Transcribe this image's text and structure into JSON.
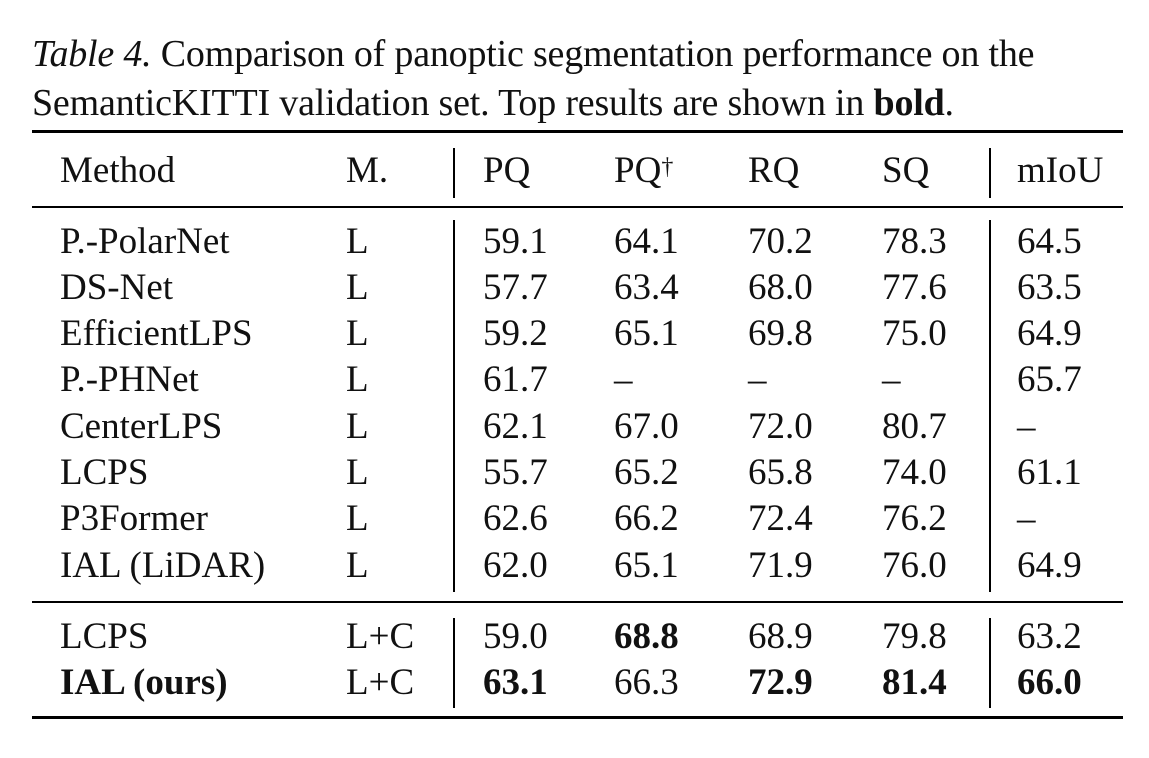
{
  "caption": {
    "label": "Table 4.",
    "line1_rest": " Comparison of panoptic segmentation performance on the",
    "line2_before": "SemanticKITTI validation set. Top results are shown in ",
    "line2_bold": "bold",
    "line2_after": "."
  },
  "table": {
    "headers": {
      "method": "Method",
      "modality": "M.",
      "pq": "PQ",
      "pq_dagger": "PQ",
      "pq_dagger_mark": "†",
      "rq": "RQ",
      "sq": "SQ",
      "miou": "mIoU"
    },
    "rows": [
      {
        "method": "P.-PolarNet",
        "m": "L",
        "pq": "59.1",
        "pqd": "64.1",
        "rq": "70.2",
        "sq": "78.3",
        "miou": "64.5"
      },
      {
        "method": "DS-Net",
        "m": "L",
        "pq": "57.7",
        "pqd": "63.4",
        "rq": "68.0",
        "sq": "77.6",
        "miou": "63.5"
      },
      {
        "method": "EfficientLPS",
        "m": "L",
        "pq": "59.2",
        "pqd": "65.1",
        "rq": "69.8",
        "sq": "75.0",
        "miou": "64.9"
      },
      {
        "method": "P.-PHNet",
        "m": "L",
        "pq": "61.7",
        "pqd": "–",
        "rq": "–",
        "sq": "–",
        "miou": "65.7"
      },
      {
        "method": "CenterLPS",
        "m": "L",
        "pq": "62.1",
        "pqd": "67.0",
        "rq": "72.0",
        "sq": "80.7",
        "miou": "–"
      },
      {
        "method": "LCPS",
        "m": "L",
        "pq": "55.7",
        "pqd": "65.2",
        "rq": "65.8",
        "sq": "74.0",
        "miou": "61.1"
      },
      {
        "method": "P3Former",
        "m": "L",
        "pq": "62.6",
        "pqd": "66.2",
        "rq": "72.4",
        "sq": "76.2",
        "miou": "–"
      },
      {
        "method": "IAL (LiDAR)",
        "m": "L",
        "pq": "62.0",
        "pqd": "65.1",
        "rq": "71.9",
        "sq": "76.0",
        "miou": "64.9"
      },
      {
        "method": "LCPS",
        "m": "L+C",
        "pq": "59.0",
        "pqd": "68.8",
        "rq": "68.9",
        "sq": "79.8",
        "miou": "63.2",
        "bold": [
          "pqd"
        ]
      },
      {
        "method": "IAL (ours)",
        "m": "L+C",
        "pq": "63.1",
        "pqd": "66.3",
        "rq": "72.9",
        "sq": "81.4",
        "miou": "66.0",
        "bold": [
          "method",
          "pq",
          "rq",
          "sq",
          "miou"
        ]
      }
    ]
  }
}
